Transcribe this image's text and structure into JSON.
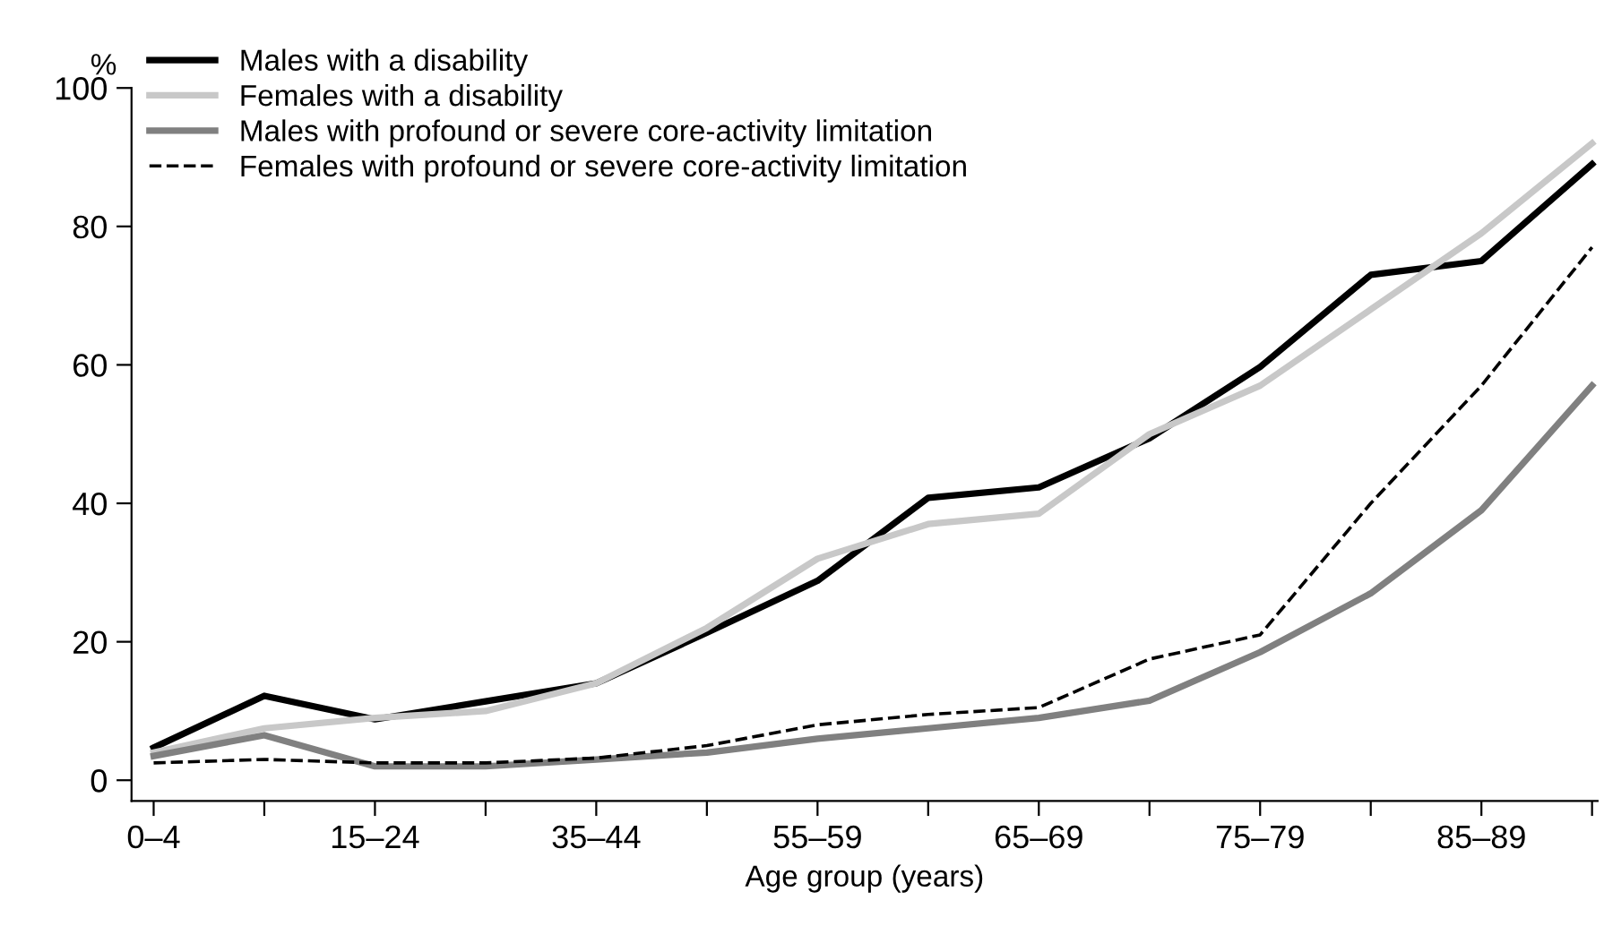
{
  "chart_data": {
    "type": "line",
    "xlabel": "Age group (years)",
    "ylabel": "%",
    "categories": [
      "0–4",
      null,
      "15–24",
      null,
      "35–44",
      null,
      "55–59",
      null,
      "65–69",
      null,
      "75–79",
      null,
      "85–89",
      null
    ],
    "series": [
      {
        "name": "Males with a disability",
        "color": "#000000",
        "line_style": "solid",
        "values": [
          4.7,
          12.2,
          8.8,
          11.4,
          14,
          21.3,
          28.8,
          40.8,
          42.3,
          49.4,
          59.7,
          73,
          75,
          89
        ]
      },
      {
        "name": "Females with a disability",
        "color": "#c8c8c8",
        "line_style": "solid",
        "values": [
          4,
          7.5,
          9,
          10,
          14,
          22,
          32,
          37,
          38.5,
          50,
          57,
          68,
          79,
          92
        ]
      },
      {
        "name": "Males with profound or severe core-activity limitation",
        "color": "#808080",
        "line_style": "solid",
        "values": [
          3.5,
          6.5,
          2,
          2,
          3,
          4,
          6,
          7.5,
          9,
          11.5,
          18.5,
          27,
          39,
          57
        ]
      },
      {
        "name": "Females with profound or severe core-activity limitation",
        "color": "#000000",
        "line_style": "dashed",
        "values": [
          2.5,
          3,
          2.5,
          2.5,
          3.2,
          5,
          8,
          9.5,
          10.5,
          17.5,
          21,
          40,
          57,
          77
        ]
      }
    ],
    "ylim": [
      -3,
      100
    ],
    "yticks": [
      0,
      20,
      40,
      60,
      80,
      100
    ],
    "legend": "top left",
    "grid": false
  }
}
